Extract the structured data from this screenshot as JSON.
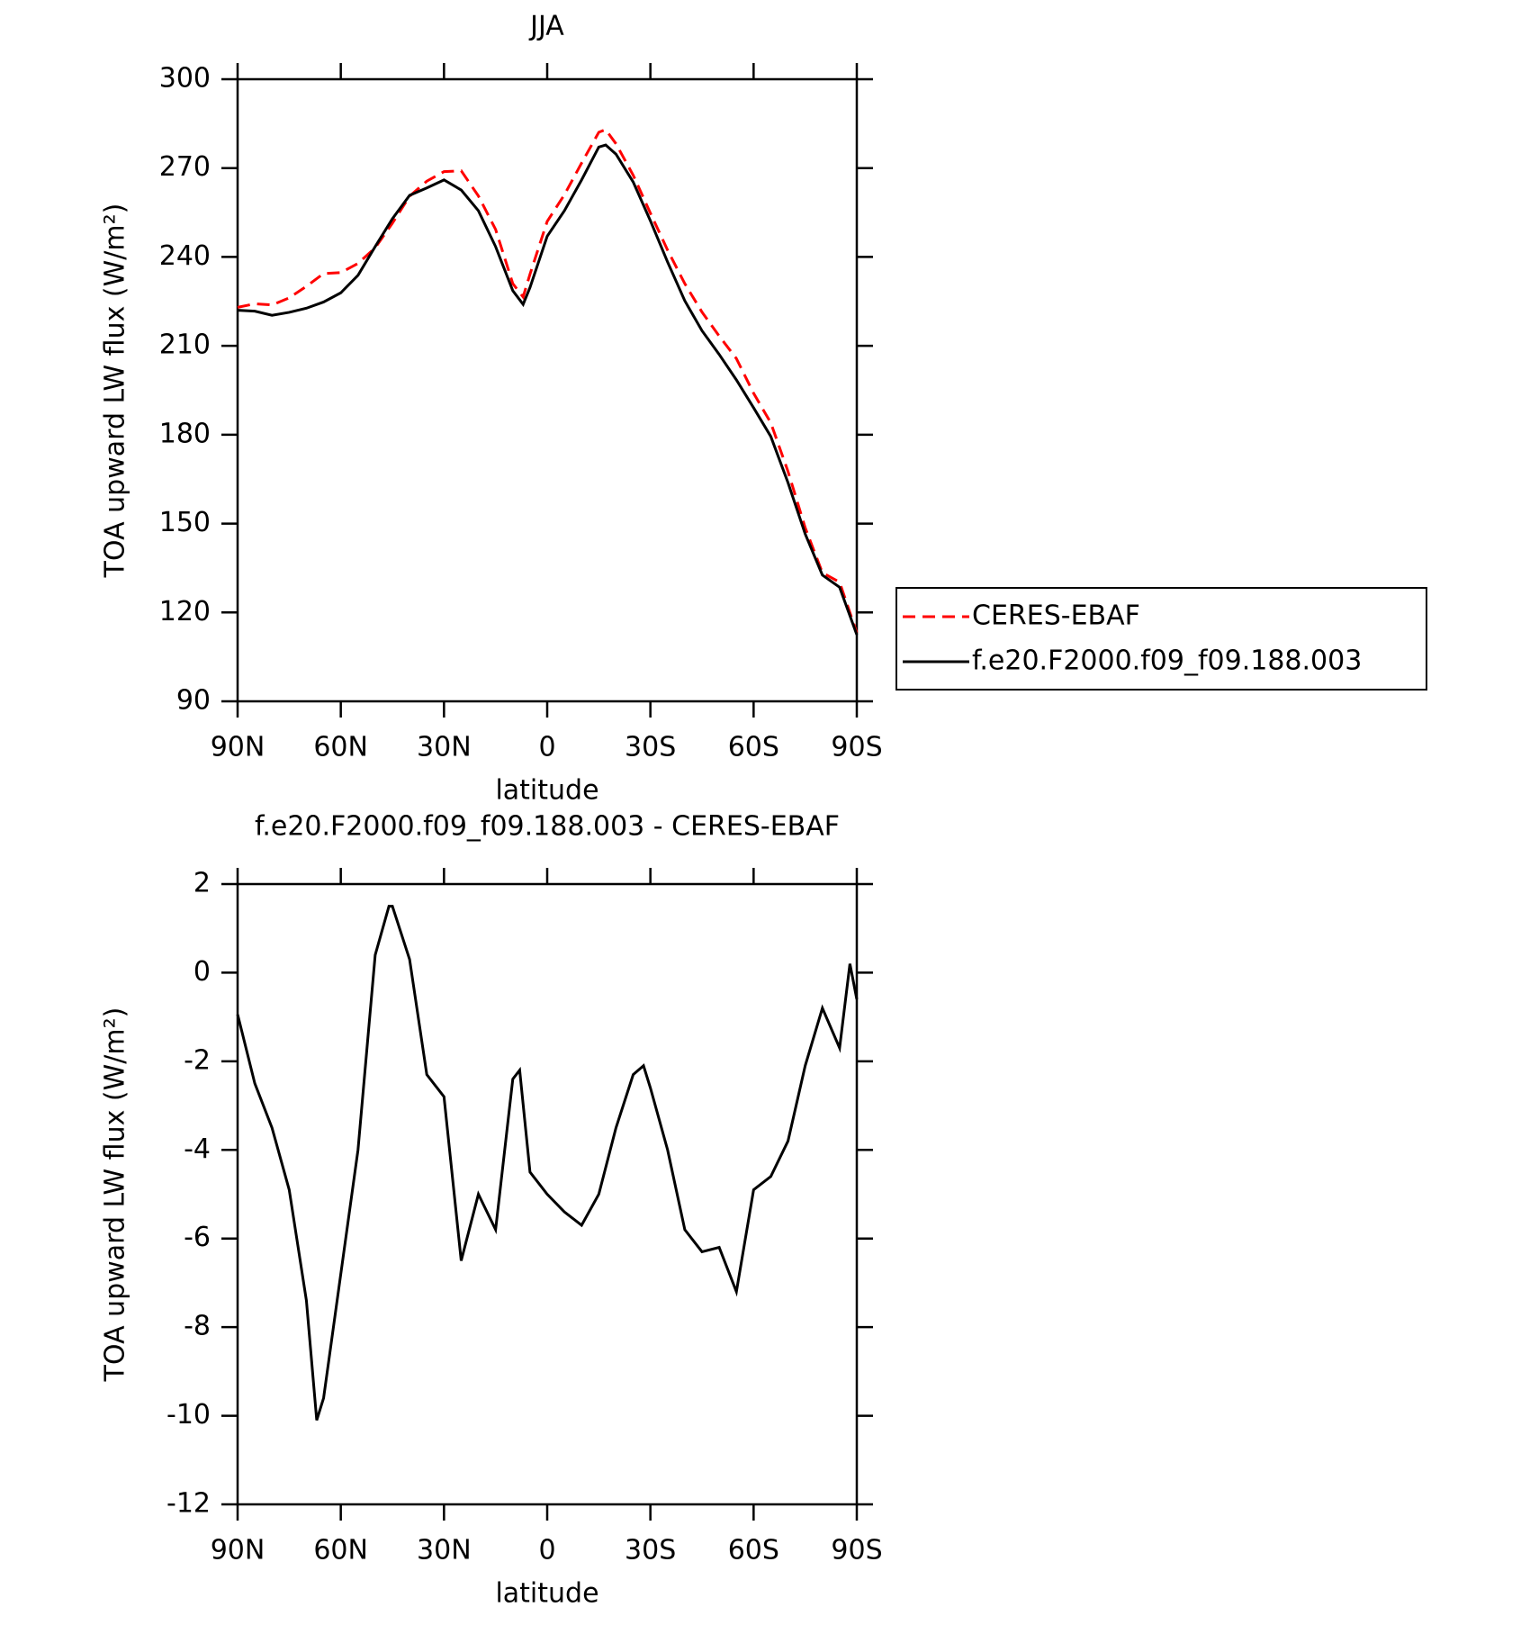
{
  "chart_data": [
    {
      "type": "line",
      "title": "JJA",
      "xlabel": "latitude",
      "ylabel": "TOA upward LW flux (W/m²)",
      "x": [
        90,
        85,
        80,
        75,
        70,
        65,
        60,
        55,
        50,
        45,
        40,
        35,
        30,
        25,
        20,
        15,
        10,
        7,
        5,
        0,
        -5,
        -10,
        -15,
        -17,
        -20,
        -25,
        -30,
        -35,
        -40,
        -45,
        -50,
        -55,
        -60,
        -65,
        -70,
        -75,
        -80,
        -85,
        -90
      ],
      "series": [
        {
          "name": "CERES-EBAF",
          "color": "#ff0000",
          "dash": true,
          "values": [
            223.0,
            224.2,
            223.8,
            226.2,
            230.1,
            234.4,
            234.7,
            237.8,
            243.1,
            251.4,
            260.5,
            265.6,
            268.8,
            269.1,
            260.6,
            249.3,
            231.0,
            226.5,
            234.2,
            252.0,
            261.0,
            271.7,
            282.1,
            283.0,
            278.2,
            267.6,
            254.8,
            242.3,
            231.0,
            221.4,
            213.3,
            205.7,
            194.0,
            184.0,
            167.6,
            148.6,
            133.4,
            130.2,
            113.1
          ]
        },
        {
          "name": "f.e20.F2000.f09_f09.188.003",
          "color": "#000000",
          "dash": false,
          "values": [
            222.0,
            221.7,
            220.3,
            221.3,
            222.7,
            224.8,
            227.9,
            233.8,
            243.5,
            252.9,
            260.8,
            263.3,
            266.0,
            262.6,
            255.6,
            243.5,
            228.6,
            224.0,
            229.7,
            247.0,
            255.6,
            266.0,
            277.1,
            277.8,
            274.7,
            265.3,
            252.2,
            238.3,
            225.2,
            215.1,
            207.1,
            198.5,
            189.1,
            179.4,
            163.8,
            146.5,
            132.6,
            128.5,
            112.5
          ]
        }
      ],
      "legend": "right",
      "xlim": [
        90,
        -90
      ],
      "xticks": [
        {
          "value": 90,
          "label": "90N"
        },
        {
          "value": 60,
          "label": "60N"
        },
        {
          "value": 30,
          "label": "30N"
        },
        0,
        {
          "value": -30,
          "label": "30S"
        },
        {
          "value": -60,
          "label": "60S"
        },
        {
          "value": -90,
          "label": "90S"
        }
      ],
      "ylim": [
        90,
        300
      ],
      "yticks": [
        90,
        120,
        150,
        180,
        210,
        240,
        270,
        300
      ]
    },
    {
      "type": "line",
      "title": "f.e20.F2000.f09_f09.188.003 - CERES-EBAF",
      "xlabel": "latitude",
      "ylabel": "TOA upward LW flux (W/m²)",
      "x": [
        90,
        85,
        80,
        75,
        70,
        67,
        65,
        60,
        55,
        50,
        46,
        45,
        40,
        35,
        30,
        25,
        20,
        15,
        10,
        8,
        5,
        0,
        -5,
        -10,
        -15,
        -20,
        -25,
        -28,
        -30,
        -35,
        -40,
        -45,
        -50,
        -55,
        -60,
        -65,
        -70,
        -75,
        -80,
        -85,
        -88,
        -90
      ],
      "values": [
        -0.94,
        -2.5,
        -3.5,
        -4.9,
        -7.4,
        -10.1,
        -9.6,
        -6.8,
        -4.0,
        0.4,
        1.5,
        1.5,
        0.3,
        -2.3,
        -2.8,
        -6.5,
        -5.0,
        -5.8,
        -2.4,
        -2.2,
        -4.5,
        -5.0,
        -5.4,
        -5.7,
        -5.0,
        -3.5,
        -2.3,
        -2.1,
        -2.6,
        -4.0,
        -5.8,
        -6.3,
        -6.2,
        -7.2,
        -4.9,
        -4.6,
        -3.8,
        -2.1,
        -0.8,
        -1.7,
        0.2,
        -0.6
      ],
      "color": "#000000",
      "xlim": [
        90,
        -90
      ],
      "xticks": [
        {
          "value": 90,
          "label": "90N"
        },
        {
          "value": 60,
          "label": "60N"
        },
        {
          "value": 30,
          "label": "30N"
        },
        0,
        {
          "value": -30,
          "label": "30S"
        },
        {
          "value": -60,
          "label": "60S"
        },
        {
          "value": -90,
          "label": "90S"
        }
      ],
      "ylim": [
        -12,
        2
      ],
      "yticks": [
        -12,
        -10,
        -8,
        -6,
        -4,
        -2,
        0,
        2
      ]
    }
  ]
}
